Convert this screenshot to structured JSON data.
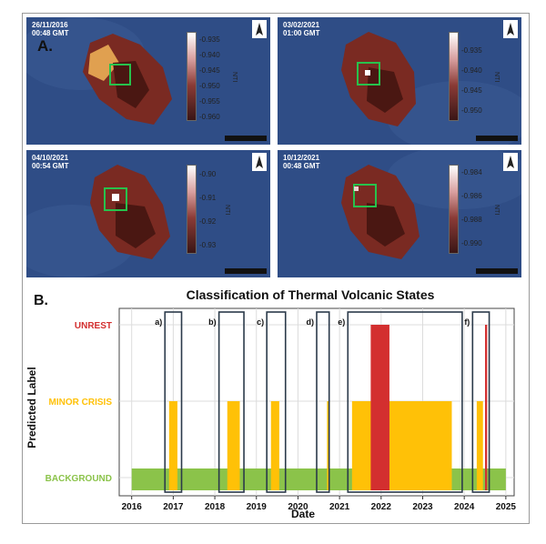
{
  "panel_a": {
    "letter": "A.",
    "tiles": [
      {
        "date": "26/11/2016",
        "time": "00:48 GMT",
        "colorbar_ticks": [
          "-0.935",
          "-0.940",
          "-0.945",
          "-0.950",
          "-0.955",
          "-0.960"
        ],
        "colorbar_label": "NTI"
      },
      {
        "date": "03/02/2021",
        "time": "01:00 GMT",
        "colorbar_ticks": [
          "-0.935",
          "-0.940",
          "-0.945",
          "-0.950"
        ],
        "colorbar_label": "NTI"
      },
      {
        "date": "04/10/2021",
        "time": "00:54 GMT",
        "colorbar_ticks": [
          "-0.90",
          "-0.91",
          "-0.92",
          "-0.93"
        ],
        "colorbar_label": "NTI"
      },
      {
        "date": "10/12/2021",
        "time": "00:48 GMT",
        "colorbar_ticks": [
          "-0.984",
          "-0.986",
          "-0.988",
          "-0.990"
        ],
        "colorbar_label": "NTI"
      }
    ]
  },
  "panel_b": {
    "letter": "B."
  },
  "chart_data": {
    "type": "bar",
    "title": "Classification of Thermal Volcanic States",
    "xlabel": "Date",
    "ylabel": "Predicted Label",
    "xlim": [
      2015.7,
      2025.2
    ],
    "xticks": [
      2016,
      2017,
      2018,
      2019,
      2020,
      2021,
      2022,
      2023,
      2024,
      2025
    ],
    "categories": [
      "BACKGROUND",
      "MINOR CRISIS",
      "UNREST"
    ],
    "category_colors": {
      "BACKGROUND": "#8bc34a",
      "MINOR CRISIS": "#ffc107",
      "UNREST": "#d32f2f"
    },
    "grid": true,
    "background_span": [
      2016.0,
      2025.0
    ],
    "minor_crisis_spans": [
      [
        2016.9,
        2017.1
      ],
      [
        2018.3,
        2018.6
      ],
      [
        2019.35,
        2019.55
      ],
      [
        2020.7,
        2020.75
      ],
      [
        2021.3,
        2023.7
      ],
      [
        2024.3,
        2024.45
      ]
    ],
    "unrest_spans": [
      [
        2021.75,
        2022.2
      ],
      [
        2024.5,
        2024.55
      ]
    ],
    "highlight_windows": [
      {
        "label": "a)",
        "start": 2016.8,
        "end": 2017.2
      },
      {
        "label": "b)",
        "start": 2018.1,
        "end": 2018.7
      },
      {
        "label": "c)",
        "start": 2019.25,
        "end": 2019.7
      },
      {
        "label": "d)",
        "start": 2020.45,
        "end": 2020.75
      },
      {
        "label": "e)",
        "start": 2021.2,
        "end": 2023.95
      },
      {
        "label": "f)",
        "start": 2024.2,
        "end": 2024.6
      }
    ]
  }
}
